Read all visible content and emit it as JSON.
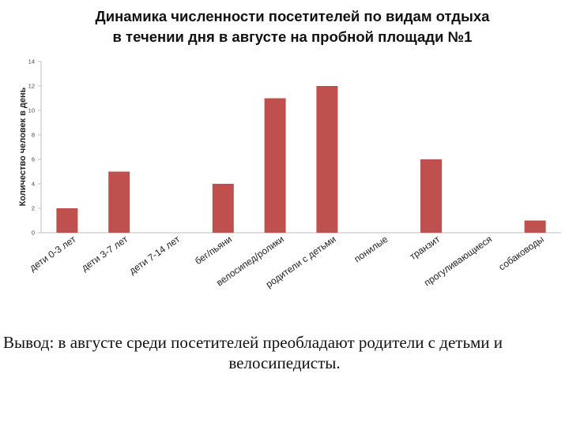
{
  "title": {
    "line1": "Динамика численности посетителей по видам отдыха",
    "line2": "в течении дня в августе на пробной площади №1"
  },
  "chart_data": {
    "type": "bar",
    "ylabel": "Количество человек в день",
    "xlabel": "",
    "ylim": [
      0,
      14
    ],
    "yticks": [
      0,
      2,
      4,
      6,
      8,
      10,
      12,
      14
    ],
    "categories": [
      "дети 0-3 лет",
      "дети 3-7 лет",
      "дети 7-14 лет",
      "бег/пьяни",
      "велосипед/ролики",
      "родители с детьми",
      "понилые",
      "транзит",
      "прогуливающиеся",
      "собаководы"
    ],
    "values": [
      2,
      5,
      0,
      4,
      11,
      12,
      0,
      6,
      0,
      1
    ],
    "bar_color": "#c0504d",
    "grid": false
  },
  "conclusion": {
    "line1": "Вывод: в августе среди посетителей преобладают родители с детьми и",
    "line2": "велосипедисты."
  }
}
